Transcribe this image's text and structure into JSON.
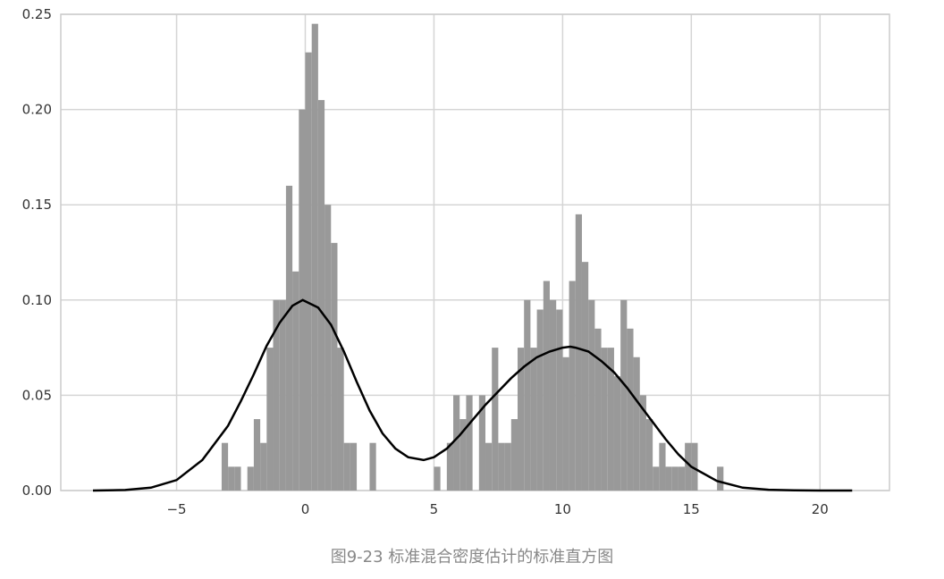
{
  "caption": "图9-23 标准混合密度估计的标准直方图",
  "chart_data": {
    "type": "bar",
    "subtype": "histogram-with-kde",
    "title": "",
    "xlabel": "",
    "ylabel": "",
    "xlim": [
      -9.5,
      22.7
    ],
    "ylim": [
      0,
      0.25
    ],
    "xticks": [
      -5,
      0,
      5,
      10,
      15,
      20
    ],
    "xtick_labels": [
      "−5",
      "0",
      "5",
      "10",
      "15",
      "20"
    ],
    "yticks": [
      0.0,
      0.05,
      0.1,
      0.15,
      0.2,
      0.25
    ],
    "ytick_labels": [
      "0.00",
      "0.05",
      "0.10",
      "0.15",
      "0.20",
      "0.25"
    ],
    "grid": true,
    "colors": {
      "bars": "#999999",
      "kde": "#000000",
      "grid": "#d5d5d5",
      "frame": "#cccccc"
    },
    "histogram": {
      "bin_width": 0.25,
      "bins": [
        [
          -3.25,
          0.025
        ],
        [
          -3.0,
          0.0125
        ],
        [
          -2.75,
          0.0125
        ],
        [
          -2.25,
          0.0125
        ],
        [
          -2.0,
          0.0375
        ],
        [
          -1.75,
          0.025
        ],
        [
          -1.5,
          0.075
        ],
        [
          -1.25,
          0.1
        ],
        [
          -1.0,
          0.1
        ],
        [
          -0.75,
          0.16
        ],
        [
          -0.5,
          0.115
        ],
        [
          -0.25,
          0.2
        ],
        [
          0.0,
          0.23
        ],
        [
          0.25,
          0.245
        ],
        [
          0.5,
          0.205
        ],
        [
          0.75,
          0.15
        ],
        [
          1.0,
          0.13
        ],
        [
          1.25,
          0.075
        ],
        [
          1.5,
          0.025
        ],
        [
          1.75,
          0.025
        ],
        [
          2.5,
          0.025
        ],
        [
          5.0,
          0.0125
        ],
        [
          5.5,
          0.025
        ],
        [
          5.75,
          0.05
        ],
        [
          6.0,
          0.0375
        ],
        [
          6.25,
          0.05
        ],
        [
          6.75,
          0.05
        ],
        [
          7.0,
          0.025
        ],
        [
          7.25,
          0.075
        ],
        [
          7.5,
          0.025
        ],
        [
          7.75,
          0.025
        ],
        [
          8.0,
          0.0375
        ],
        [
          8.25,
          0.075
        ],
        [
          8.5,
          0.1
        ],
        [
          8.75,
          0.075
        ],
        [
          9.0,
          0.095
        ],
        [
          9.25,
          0.11
        ],
        [
          9.5,
          0.1
        ],
        [
          9.75,
          0.095
        ],
        [
          10.0,
          0.07
        ],
        [
          10.25,
          0.11
        ],
        [
          10.5,
          0.145
        ],
        [
          10.75,
          0.12
        ],
        [
          11.0,
          0.1
        ],
        [
          11.25,
          0.085
        ],
        [
          11.5,
          0.075
        ],
        [
          11.75,
          0.075
        ],
        [
          12.0,
          0.06
        ],
        [
          12.25,
          0.1
        ],
        [
          12.5,
          0.085
        ],
        [
          12.75,
          0.07
        ],
        [
          13.0,
          0.05
        ],
        [
          13.25,
          0.0375
        ],
        [
          13.5,
          0.0125
        ],
        [
          13.75,
          0.025
        ],
        [
          14.0,
          0.0125
        ],
        [
          14.25,
          0.0125
        ],
        [
          14.5,
          0.0125
        ],
        [
          14.75,
          0.025
        ],
        [
          15.0,
          0.025
        ],
        [
          16.0,
          0.0125
        ]
      ]
    },
    "kde": {
      "x": [
        -8.25,
        -7,
        -6,
        -5,
        -4,
        -3,
        -2.5,
        -2,
        -1.5,
        -1,
        -0.5,
        -0.1,
        0.5,
        1,
        1.5,
        2,
        2.5,
        3,
        3.5,
        4,
        4.6,
        5,
        5.5,
        6,
        6.5,
        7,
        7.5,
        8,
        8.5,
        9,
        9.5,
        10,
        10.3,
        10.5,
        11,
        11.5,
        12,
        12.5,
        13,
        13.5,
        14,
        14.5,
        15,
        16,
        17,
        18,
        19,
        20,
        21.25
      ],
      "y": [
        0.0,
        0.0003,
        0.0015,
        0.0055,
        0.016,
        0.034,
        0.047,
        0.061,
        0.076,
        0.088,
        0.097,
        0.1,
        0.096,
        0.087,
        0.073,
        0.057,
        0.042,
        0.03,
        0.022,
        0.0175,
        0.016,
        0.0175,
        0.022,
        0.029,
        0.037,
        0.045,
        0.052,
        0.059,
        0.065,
        0.07,
        0.073,
        0.075,
        0.0755,
        0.075,
        0.073,
        0.068,
        0.062,
        0.054,
        0.045,
        0.036,
        0.027,
        0.019,
        0.0125,
        0.005,
        0.0015,
        0.0004,
        0.0001,
        0.0,
        0.0
      ]
    }
  }
}
